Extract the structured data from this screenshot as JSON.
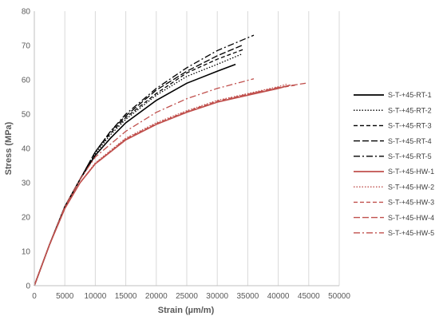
{
  "chart_data": {
    "type": "line",
    "xlabel": "Strain (µm/m)",
    "ylabel": "Stress (MPa)",
    "xlim": [
      0,
      50000
    ],
    "ylim": [
      0,
      80
    ],
    "xticks": [
      "0",
      "5000",
      "10000",
      "15000",
      "20000",
      "25000",
      "30000",
      "35000",
      "40000",
      "45000",
      "50000"
    ],
    "yticks": [
      "0",
      "10",
      "20",
      "30",
      "40",
      "50",
      "60",
      "70",
      "80"
    ],
    "grid": "vertical",
    "legend_position": "right",
    "series": [
      {
        "name": "S-T-+45-RT-1",
        "color": "#000000",
        "dash": "solid",
        "points": [
          [
            0,
            0
          ],
          [
            2500,
            12
          ],
          [
            5000,
            23
          ],
          [
            7500,
            31
          ],
          [
            10000,
            38
          ],
          [
            12500,
            43
          ],
          [
            15000,
            47.5
          ],
          [
            20000,
            54
          ],
          [
            25000,
            59
          ],
          [
            30000,
            62.5
          ],
          [
            33000,
            64.5
          ]
        ]
      },
      {
        "name": "S-T-+45-RT-2",
        "color": "#000000",
        "dash": "dot",
        "points": [
          [
            0,
            0
          ],
          [
            2500,
            12
          ],
          [
            5000,
            23
          ],
          [
            7500,
            31
          ],
          [
            10000,
            38.5
          ],
          [
            12500,
            44
          ],
          [
            15000,
            48.5
          ],
          [
            20000,
            55.5
          ],
          [
            25000,
            61
          ],
          [
            30000,
            64.5
          ],
          [
            34000,
            67.5
          ]
        ]
      },
      {
        "name": "S-T-+45-RT-3",
        "color": "#000000",
        "dash": "dash",
        "points": [
          [
            0,
            0
          ],
          [
            2500,
            12
          ],
          [
            5000,
            23
          ],
          [
            7500,
            31
          ],
          [
            10000,
            39
          ],
          [
            12500,
            44.5
          ],
          [
            15000,
            49
          ],
          [
            20000,
            56
          ],
          [
            25000,
            62
          ],
          [
            30000,
            66
          ],
          [
            34500,
            69
          ]
        ]
      },
      {
        "name": "S-T-+45-RT-4",
        "color": "#000000",
        "dash": "longdash",
        "points": [
          [
            0,
            0
          ],
          [
            2500,
            12
          ],
          [
            5000,
            23
          ],
          [
            7500,
            31
          ],
          [
            10000,
            39
          ],
          [
            12500,
            45
          ],
          [
            15000,
            49.5
          ],
          [
            20000,
            57
          ],
          [
            25000,
            62.5
          ],
          [
            30000,
            67
          ],
          [
            34000,
            70
          ]
        ]
      },
      {
        "name": "S-T-+45-RT-5",
        "color": "#000000",
        "dash": "dashdot",
        "points": [
          [
            0,
            0
          ],
          [
            2500,
            12
          ],
          [
            5000,
            23
          ],
          [
            7500,
            31
          ],
          [
            10000,
            39
          ],
          [
            12500,
            45
          ],
          [
            15000,
            50
          ],
          [
            20000,
            57.5
          ],
          [
            25000,
            63.5
          ],
          [
            30000,
            68.5
          ],
          [
            36000,
            73
          ]
        ]
      },
      {
        "name": "S-T-+45-HW-1",
        "color": "#c0504d",
        "dash": "solid",
        "points": [
          [
            0,
            0
          ],
          [
            2500,
            12
          ],
          [
            5000,
            22.5
          ],
          [
            7500,
            30
          ],
          [
            10000,
            35.5
          ],
          [
            15000,
            42.5
          ],
          [
            20000,
            47
          ],
          [
            25000,
            50.5
          ],
          [
            30000,
            53.5
          ],
          [
            35000,
            55.5
          ],
          [
            40000,
            57.5
          ],
          [
            42000,
            58.5
          ]
        ]
      },
      {
        "name": "S-T-+45-HW-2",
        "color": "#c0504d",
        "dash": "dot",
        "points": [
          [
            0,
            0
          ],
          [
            2500,
            12
          ],
          [
            5000,
            22.5
          ],
          [
            7500,
            30
          ],
          [
            10000,
            35.8
          ],
          [
            15000,
            43
          ],
          [
            20000,
            47.5
          ],
          [
            25000,
            51
          ],
          [
            30000,
            54
          ],
          [
            35000,
            56
          ],
          [
            40000,
            58
          ],
          [
            41500,
            58.8
          ]
        ]
      },
      {
        "name": "S-T-+45-HW-3",
        "color": "#c0504d",
        "dash": "dash",
        "points": [
          [
            0,
            0
          ],
          [
            2500,
            12
          ],
          [
            5000,
            22.5
          ],
          [
            7500,
            30
          ],
          [
            10000,
            35.6
          ],
          [
            15000,
            42.8
          ],
          [
            20000,
            47.2
          ],
          [
            25000,
            50.8
          ],
          [
            30000,
            53.8
          ],
          [
            35000,
            55.8
          ],
          [
            40000,
            57.6
          ],
          [
            43000,
            58.5
          ]
        ]
      },
      {
        "name": "S-T-+45-HW-4",
        "color": "#c0504d",
        "dash": "longdash",
        "points": [
          [
            0,
            0
          ],
          [
            2500,
            12
          ],
          [
            5000,
            22.5
          ],
          [
            7500,
            30
          ],
          [
            10000,
            35.5
          ],
          [
            15000,
            42.6
          ],
          [
            20000,
            47
          ],
          [
            25000,
            50.6
          ],
          [
            30000,
            53.5
          ],
          [
            35000,
            55.8
          ],
          [
            40000,
            57.8
          ],
          [
            44500,
            59
          ]
        ]
      },
      {
        "name": "S-T-+45-HW-5",
        "color": "#c0504d",
        "dash": "dashdot",
        "points": [
          [
            0,
            0
          ],
          [
            2500,
            12
          ],
          [
            5000,
            23
          ],
          [
            7500,
            31
          ],
          [
            10000,
            37.5
          ],
          [
            15000,
            45
          ],
          [
            20000,
            50.5
          ],
          [
            25000,
            54.5
          ],
          [
            30000,
            57.5
          ],
          [
            36000,
            60.3
          ]
        ]
      }
    ]
  }
}
